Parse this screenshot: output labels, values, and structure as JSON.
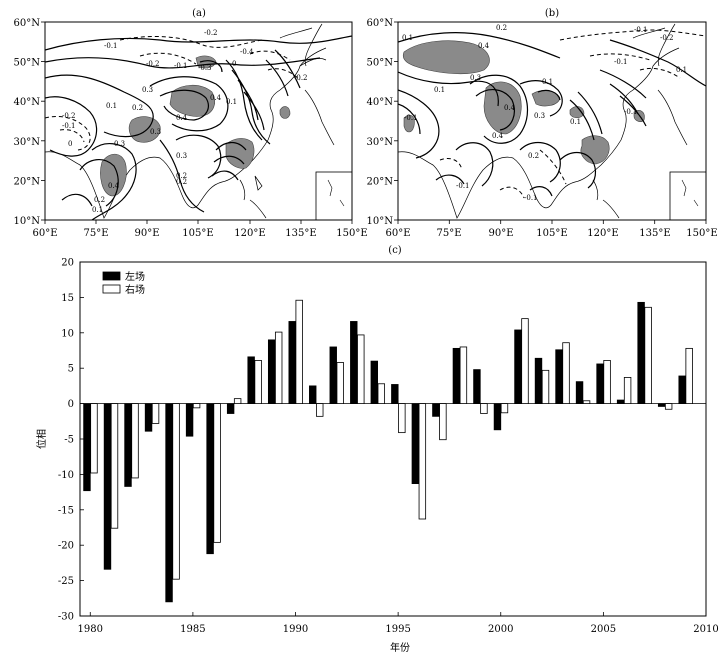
{
  "panels": {
    "a": {
      "title": "(a)",
      "contour_labels": [
        "-0.2",
        "-0.1",
        "-0.2",
        "-0.1",
        "-0.3",
        "-0.4",
        "0",
        "-0.2",
        "0.4",
        "0.3",
        "0.1",
        "0.4",
        "-0.1",
        "-0.2",
        "0",
        "0.3",
        "0.2",
        "0.4",
        "0.1",
        "0.2",
        "0.1",
        "0.2",
        "0.3",
        "0.2",
        "0.3"
      ]
    },
    "b": {
      "title": "(b)",
      "contour_labels": [
        "0.2",
        "-0.1",
        "-0.2",
        "0.1",
        "0.4",
        "-0.1",
        "0.3",
        "0.1",
        "0.4",
        "0.1",
        "-0.1",
        "0.4",
        "0.3",
        "0.1",
        "0.2",
        "-0.1",
        "-0.1",
        "0.1",
        "-0.1"
      ]
    },
    "c": {
      "title": "(c)"
    }
  },
  "map_axes": {
    "lon_ticks": [
      "60°E",
      "75°E",
      "90°E",
      "105°E",
      "120°E",
      "135°E",
      "150°E"
    ],
    "lat_ticks": [
      "60°N",
      "50°N",
      "40°N",
      "30°N",
      "20°N",
      "10°N"
    ]
  },
  "chart_data": {
    "type": "bar",
    "title": "(c)",
    "xlabel": "年份",
    "ylabel": "位相",
    "xlim": [
      1979.5,
      2010
    ],
    "ylim": [
      -30,
      20
    ],
    "x_ticks": [
      1980,
      1985,
      1990,
      1995,
      2000,
      2005,
      2010
    ],
    "y_ticks": [
      20,
      15,
      10,
      5,
      0,
      -5,
      -10,
      -15,
      -20,
      -25,
      -30
    ],
    "legend_position": "top-left",
    "categories": [
      1980,
      1981,
      1982,
      1983,
      1984,
      1985,
      1986,
      1987,
      1988,
      1989,
      1990,
      1991,
      1992,
      1993,
      1994,
      1995,
      1996,
      1997,
      1998,
      1999,
      2000,
      2001,
      2002,
      2003,
      2004,
      2005,
      2006,
      2007,
      2008,
      2009
    ],
    "series": [
      {
        "name": "左场",
        "color": "#000000",
        "values": [
          -12.3,
          -23.4,
          -11.7,
          -3.9,
          -28.0,
          -4.6,
          -21.2,
          -1.4,
          6.6,
          9.0,
          11.6,
          2.5,
          8.0,
          11.6,
          6.0,
          2.7,
          -11.3,
          -1.8,
          7.8,
          4.8,
          -3.7,
          10.4,
          6.4,
          7.6,
          3.1,
          5.6,
          0.5,
          14.3,
          -0.4,
          3.9
        ]
      },
      {
        "name": "右场",
        "color": "#ffffff",
        "values": [
          -9.8,
          -17.6,
          -10.5,
          -2.8,
          -24.8,
          -0.6,
          -19.6,
          0.7,
          6.1,
          10.1,
          14.6,
          -1.8,
          5.8,
          9.7,
          2.8,
          -4.1,
          -16.3,
          -5.1,
          8.0,
          -1.4,
          -1.3,
          12.0,
          4.7,
          8.6,
          0.4,
          6.1,
          3.7,
          13.6,
          -0.8,
          7.8
        ]
      }
    ]
  }
}
